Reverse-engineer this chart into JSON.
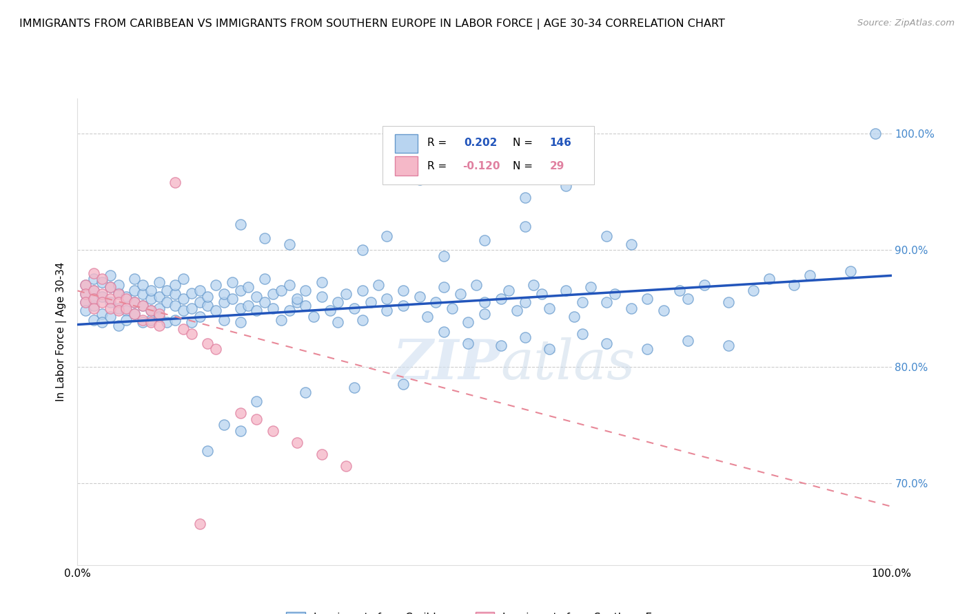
{
  "title": "IMMIGRANTS FROM CARIBBEAN VS IMMIGRANTS FROM SOUTHERN EUROPE IN LABOR FORCE | AGE 30-34 CORRELATION CHART",
  "source": "Source: ZipAtlas.com",
  "ylabel": "In Labor Force | Age 30-34",
  "xlim": [
    0.0,
    1.0
  ],
  "ylim": [
    0.63,
    1.03
  ],
  "blue_color": "#b8d4f0",
  "blue_edge": "#6699cc",
  "pink_color": "#f5b8c8",
  "pink_edge": "#e080a0",
  "blue_line_color": "#2255bb",
  "pink_line_color": "#e88898",
  "watermark_color": "#d0dff0",
  "legend_label_blue": "Immigrants from Caribbean",
  "legend_label_pink": "Immigrants from Southern Europe",
  "blue_trend_x": [
    0.0,
    1.0
  ],
  "blue_trend_y": [
    0.836,
    0.878
  ],
  "pink_trend_x": [
    0.0,
    1.0
  ],
  "pink_trend_y": [
    0.865,
    0.68
  ],
  "blue_scatter": [
    [
      0.01,
      0.855
    ],
    [
      0.01,
      0.862
    ],
    [
      0.01,
      0.848
    ],
    [
      0.01,
      0.87
    ],
    [
      0.02,
      0.852
    ],
    [
      0.02,
      0.865
    ],
    [
      0.02,
      0.84
    ],
    [
      0.02,
      0.858
    ],
    [
      0.02,
      0.875
    ],
    [
      0.03,
      0.845
    ],
    [
      0.03,
      0.86
    ],
    [
      0.03,
      0.872
    ],
    [
      0.03,
      0.838
    ],
    [
      0.04,
      0.855
    ],
    [
      0.04,
      0.868
    ],
    [
      0.04,
      0.843
    ],
    [
      0.04,
      0.878
    ],
    [
      0.05,
      0.85
    ],
    [
      0.05,
      0.863
    ],
    [
      0.05,
      0.835
    ],
    [
      0.05,
      0.87
    ],
    [
      0.06,
      0.848
    ],
    [
      0.06,
      0.86
    ],
    [
      0.06,
      0.84
    ],
    [
      0.07,
      0.855
    ],
    [
      0.07,
      0.865
    ],
    [
      0.07,
      0.845
    ],
    [
      0.07,
      0.875
    ],
    [
      0.08,
      0.852
    ],
    [
      0.08,
      0.862
    ],
    [
      0.08,
      0.838
    ],
    [
      0.08,
      0.87
    ],
    [
      0.09,
      0.848
    ],
    [
      0.09,
      0.858
    ],
    [
      0.09,
      0.84
    ],
    [
      0.09,
      0.865
    ],
    [
      0.1,
      0.85
    ],
    [
      0.1,
      0.86
    ],
    [
      0.1,
      0.843
    ],
    [
      0.1,
      0.872
    ],
    [
      0.11,
      0.855
    ],
    [
      0.11,
      0.865
    ],
    [
      0.11,
      0.838
    ],
    [
      0.12,
      0.852
    ],
    [
      0.12,
      0.862
    ],
    [
      0.12,
      0.84
    ],
    [
      0.12,
      0.87
    ],
    [
      0.13,
      0.848
    ],
    [
      0.13,
      0.858
    ],
    [
      0.13,
      0.875
    ],
    [
      0.14,
      0.85
    ],
    [
      0.14,
      0.863
    ],
    [
      0.14,
      0.838
    ],
    [
      0.15,
      0.855
    ],
    [
      0.15,
      0.865
    ],
    [
      0.15,
      0.843
    ],
    [
      0.16,
      0.852
    ],
    [
      0.16,
      0.86
    ],
    [
      0.17,
      0.848
    ],
    [
      0.17,
      0.87
    ],
    [
      0.18,
      0.855
    ],
    [
      0.18,
      0.862
    ],
    [
      0.18,
      0.84
    ],
    [
      0.19,
      0.858
    ],
    [
      0.19,
      0.872
    ],
    [
      0.2,
      0.85
    ],
    [
      0.2,
      0.865
    ],
    [
      0.2,
      0.838
    ],
    [
      0.21,
      0.852
    ],
    [
      0.21,
      0.868
    ],
    [
      0.22,
      0.848
    ],
    [
      0.22,
      0.86
    ],
    [
      0.23,
      0.855
    ],
    [
      0.23,
      0.875
    ],
    [
      0.24,
      0.85
    ],
    [
      0.24,
      0.862
    ],
    [
      0.25,
      0.865
    ],
    [
      0.25,
      0.84
    ],
    [
      0.26,
      0.848
    ],
    [
      0.26,
      0.87
    ],
    [
      0.27,
      0.855
    ],
    [
      0.27,
      0.858
    ],
    [
      0.28,
      0.852
    ],
    [
      0.28,
      0.865
    ],
    [
      0.29,
      0.843
    ],
    [
      0.3,
      0.86
    ],
    [
      0.3,
      0.872
    ],
    [
      0.31,
      0.848
    ],
    [
      0.32,
      0.855
    ],
    [
      0.32,
      0.838
    ],
    [
      0.33,
      0.862
    ],
    [
      0.34,
      0.85
    ],
    [
      0.35,
      0.865
    ],
    [
      0.35,
      0.84
    ],
    [
      0.36,
      0.855
    ],
    [
      0.37,
      0.87
    ],
    [
      0.38,
      0.848
    ],
    [
      0.38,
      0.858
    ],
    [
      0.4,
      0.852
    ],
    [
      0.4,
      0.865
    ],
    [
      0.42,
      0.86
    ],
    [
      0.43,
      0.843
    ],
    [
      0.44,
      0.855
    ],
    [
      0.45,
      0.868
    ],
    [
      0.46,
      0.85
    ],
    [
      0.47,
      0.862
    ],
    [
      0.48,
      0.838
    ],
    [
      0.49,
      0.87
    ],
    [
      0.5,
      0.855
    ],
    [
      0.5,
      0.845
    ],
    [
      0.52,
      0.858
    ],
    [
      0.53,
      0.865
    ],
    [
      0.54,
      0.848
    ],
    [
      0.55,
      0.855
    ],
    [
      0.56,
      0.87
    ],
    [
      0.57,
      0.862
    ],
    [
      0.58,
      0.85
    ],
    [
      0.6,
      0.865
    ],
    [
      0.61,
      0.843
    ],
    [
      0.62,
      0.855
    ],
    [
      0.63,
      0.868
    ],
    [
      0.65,
      0.855
    ],
    [
      0.66,
      0.862
    ],
    [
      0.68,
      0.85
    ],
    [
      0.7,
      0.858
    ],
    [
      0.72,
      0.848
    ],
    [
      0.74,
      0.865
    ],
    [
      0.75,
      0.858
    ],
    [
      0.77,
      0.87
    ],
    [
      0.8,
      0.855
    ],
    [
      0.83,
      0.865
    ],
    [
      0.85,
      0.875
    ],
    [
      0.88,
      0.87
    ],
    [
      0.9,
      0.878
    ],
    [
      0.95,
      0.882
    ],
    [
      0.98,
      1.0
    ],
    [
      0.2,
      0.922
    ],
    [
      0.23,
      0.91
    ],
    [
      0.26,
      0.905
    ],
    [
      0.35,
      0.9
    ],
    [
      0.38,
      0.912
    ],
    [
      0.45,
      0.895
    ],
    [
      0.5,
      0.908
    ],
    [
      0.55,
      0.92
    ],
    [
      0.6,
      0.955
    ],
    [
      0.65,
      0.912
    ],
    [
      0.68,
      0.905
    ],
    [
      0.42,
      0.96
    ],
    [
      0.55,
      0.945
    ],
    [
      0.18,
      0.75
    ],
    [
      0.22,
      0.77
    ],
    [
      0.28,
      0.778
    ],
    [
      0.34,
      0.782
    ],
    [
      0.4,
      0.785
    ],
    [
      0.16,
      0.728
    ],
    [
      0.2,
      0.745
    ],
    [
      0.45,
      0.83
    ],
    [
      0.48,
      0.82
    ],
    [
      0.52,
      0.818
    ],
    [
      0.55,
      0.825
    ],
    [
      0.58,
      0.815
    ],
    [
      0.62,
      0.828
    ],
    [
      0.65,
      0.82
    ],
    [
      0.7,
      0.815
    ],
    [
      0.75,
      0.822
    ],
    [
      0.8,
      0.818
    ]
  ],
  "pink_scatter": [
    [
      0.01,
      0.87
    ],
    [
      0.01,
      0.862
    ],
    [
      0.01,
      0.855
    ],
    [
      0.02,
      0.88
    ],
    [
      0.02,
      0.865
    ],
    [
      0.02,
      0.858
    ],
    [
      0.02,
      0.85
    ],
    [
      0.03,
      0.875
    ],
    [
      0.03,
      0.862
    ],
    [
      0.03,
      0.855
    ],
    [
      0.04,
      0.868
    ],
    [
      0.04,
      0.858
    ],
    [
      0.04,
      0.85
    ],
    [
      0.05,
      0.862
    ],
    [
      0.05,
      0.855
    ],
    [
      0.05,
      0.848
    ],
    [
      0.06,
      0.858
    ],
    [
      0.06,
      0.85
    ],
    [
      0.07,
      0.855
    ],
    [
      0.07,
      0.845
    ],
    [
      0.08,
      0.852
    ],
    [
      0.08,
      0.84
    ],
    [
      0.09,
      0.848
    ],
    [
      0.09,
      0.838
    ],
    [
      0.1,
      0.845
    ],
    [
      0.1,
      0.835
    ],
    [
      0.12,
      0.958
    ],
    [
      0.13,
      0.832
    ],
    [
      0.14,
      0.828
    ],
    [
      0.16,
      0.82
    ],
    [
      0.17,
      0.815
    ],
    [
      0.2,
      0.76
    ],
    [
      0.22,
      0.755
    ],
    [
      0.24,
      0.745
    ],
    [
      0.27,
      0.735
    ],
    [
      0.3,
      0.725
    ],
    [
      0.33,
      0.715
    ],
    [
      0.15,
      0.665
    ]
  ]
}
